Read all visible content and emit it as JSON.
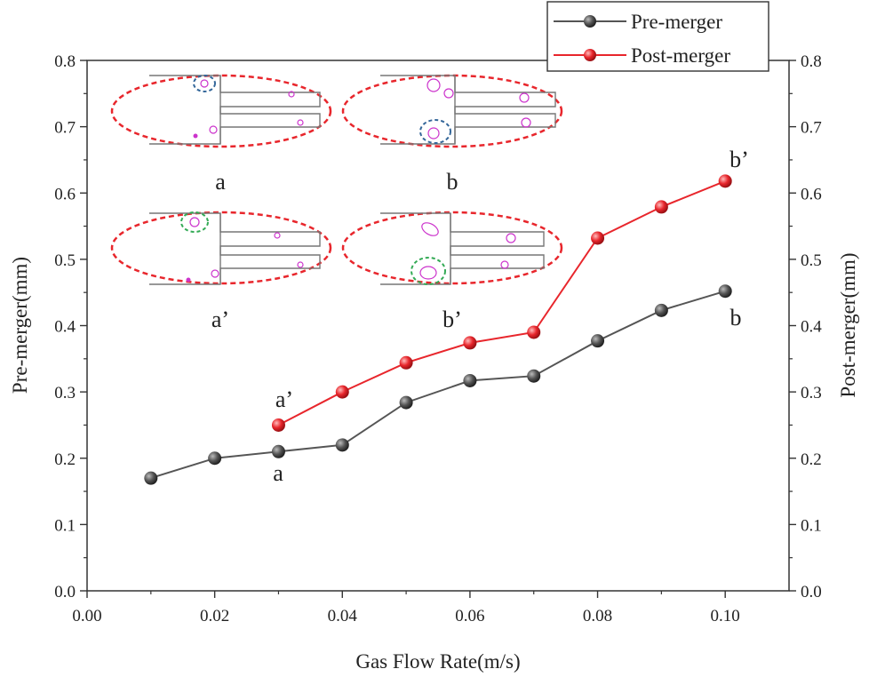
{
  "chart_data": {
    "type": "line",
    "xlabel": "Gas Flow Rate(m/s)",
    "ylabel_left": "Pre-merger(mm)",
    "ylabel_right": "Post-merger(mm)",
    "xlim": [
      0.0,
      0.11
    ],
    "ylim": [
      0.0,
      0.8
    ],
    "xticks": [
      "0.00",
      "0.02",
      "0.04",
      "0.06",
      "0.08",
      "0.10"
    ],
    "yticks": [
      "0.0",
      "0.1",
      "0.2",
      "0.3",
      "0.4",
      "0.5",
      "0.6",
      "0.7",
      "0.8"
    ],
    "series": [
      {
        "name": "Pre-merger",
        "color": "#555555",
        "x": [
          0.01,
          0.02,
          0.03,
          0.04,
          0.05,
          0.06,
          0.07,
          0.08,
          0.09,
          0.1
        ],
        "values": [
          0.17,
          0.2,
          0.21,
          0.22,
          0.284,
          0.317,
          0.324,
          0.377,
          0.423,
          0.452
        ]
      },
      {
        "name": "Post-merger",
        "color": "#e8262c",
        "x": [
          0.03,
          0.04,
          0.05,
          0.06,
          0.07,
          0.08,
          0.09,
          0.1
        ],
        "values": [
          0.25,
          0.3,
          0.344,
          0.374,
          0.39,
          0.532,
          0.579,
          0.618
        ]
      }
    ],
    "annotations": [
      {
        "text": "a",
        "x": 0.03,
        "y": 0.21
      },
      {
        "text": "a’",
        "x": 0.03,
        "y": 0.25
      },
      {
        "text": "b",
        "x": 0.1,
        "y": 0.452
      },
      {
        "text": "b’",
        "x": 0.1,
        "y": 0.618
      }
    ],
    "insets": [
      "a",
      "b",
      "a’",
      "b’"
    ],
    "legend_position": "top-right"
  },
  "colors": {
    "pre": "#555555",
    "post": "#e8262c",
    "ellipse": "#e8262c",
    "bubble": "#cc33cc",
    "highlight_blue": "#336699",
    "highlight_green": "#33aa55"
  }
}
